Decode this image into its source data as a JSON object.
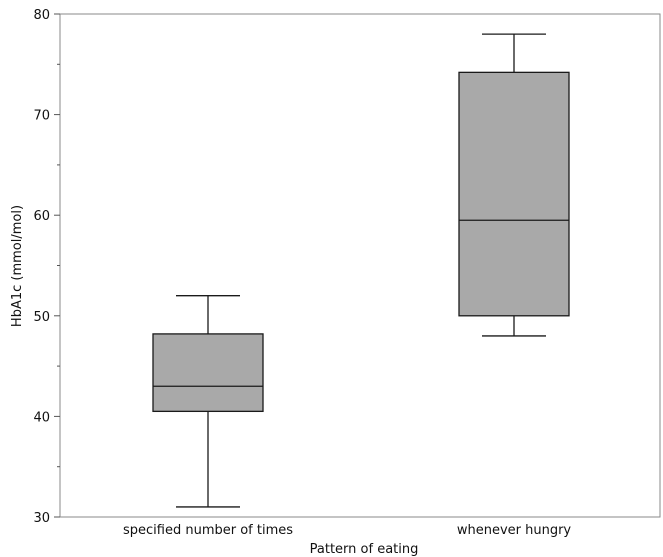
{
  "chart_data": {
    "type": "box",
    "title": "",
    "xlabel": "Pattern of eating",
    "ylabel": "HbA1c (mmol/mol)",
    "ylim": [
      30,
      80
    ],
    "yticks": [
      30,
      40,
      50,
      60,
      70,
      80
    ],
    "grid": false,
    "categories": [
      "specified number of times",
      "whenever hungry"
    ],
    "boxes": [
      {
        "category": "specified number of times",
        "min": 31,
        "q1": 40.5,
        "median": 43,
        "q3": 48.2,
        "max": 52
      },
      {
        "category": "whenever hungry",
        "min": 48,
        "q1": 50,
        "median": 59.5,
        "q3": 74.2,
        "max": 78
      }
    ],
    "colors": {
      "box_fill": "#a9a9a9",
      "stroke": "#1a1a1a",
      "axis": "#8a8a8a"
    }
  }
}
